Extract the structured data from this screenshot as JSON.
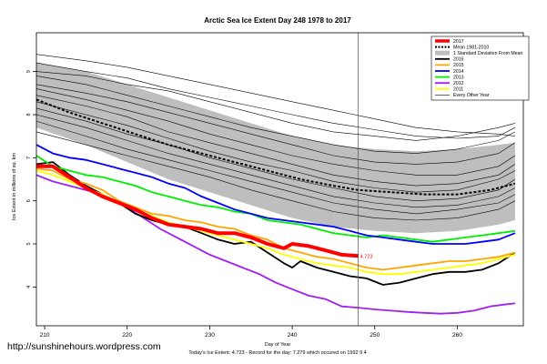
{
  "chart_data": {
    "type": "line",
    "title": "Arctic Sea Ice Extent Day 248 1978 to 2017",
    "xlabel": "Day of Year",
    "ylabel": "Ice Extent in millions of sq. km",
    "xlim": [
      209,
      268
    ],
    "ylim": [
      3.1,
      9.9
    ],
    "x_ticks": [
      210,
      220,
      230,
      240,
      250,
      260
    ],
    "y_ticks": [
      4,
      5,
      6,
      7,
      8,
      9
    ],
    "marker_day": 248,
    "today_label": "4.723",
    "footer": "Today's Ice Extent: 4.723 - Record for the day: 7.279 which occured on 1992 9 4",
    "watermark": "http://sunshinehours.wordpress.com",
    "legend": [
      {
        "name": "2017",
        "color": "#ff0000",
        "style": "solid-thick"
      },
      {
        "name": "Mean 1981-2010",
        "color": "#000000",
        "style": "dotted"
      },
      {
        "name": "1 Standard Deviation From Mean",
        "color": "#bebebe",
        "style": "box"
      },
      {
        "name": "2016",
        "color": "#000000",
        "style": "solid"
      },
      {
        "name": "2015",
        "color": "#ffa500",
        "style": "solid"
      },
      {
        "name": "2014",
        "color": "#0000ff",
        "style": "solid"
      },
      {
        "name": "2013",
        "color": "#00ee00",
        "style": "solid"
      },
      {
        "name": "2012",
        "color": "#a020f0",
        "style": "solid"
      },
      {
        "name": "2011",
        "color": "#ffff00",
        "style": "solid"
      },
      {
        "name": "Every Other Year",
        "color": "#000000",
        "style": "thin"
      }
    ],
    "band": {
      "x": [
        209,
        215,
        220,
        225,
        230,
        235,
        240,
        245,
        250,
        255,
        260,
        265,
        267
      ],
      "upper": [
        9.2,
        9.0,
        8.7,
        8.4,
        8.1,
        7.8,
        7.5,
        7.3,
        7.2,
        7.15,
        7.2,
        7.3,
        7.35
      ],
      "lower": [
        7.7,
        7.3,
        6.9,
        6.5,
        6.2,
        5.9,
        5.6,
        5.4,
        5.3,
        5.25,
        5.3,
        5.45,
        5.55
      ]
    },
    "mean": {
      "x": [
        209,
        213,
        217,
        221,
        225,
        229,
        233,
        237,
        241,
        245,
        248,
        252,
        256,
        260,
        264,
        267
      ],
      "y": [
        8.35,
        8.05,
        7.8,
        7.55,
        7.3,
        7.1,
        6.9,
        6.7,
        6.5,
        6.35,
        6.25,
        6.2,
        6.15,
        6.15,
        6.25,
        6.4
      ]
    },
    "series": [
      {
        "name": "2012",
        "color": "#a020f0",
        "width": 1.8,
        "x": [
          209,
          211,
          214,
          216,
          218,
          220,
          222,
          224,
          226,
          228,
          230,
          232,
          234,
          236,
          238,
          240,
          242,
          244,
          246,
          248,
          250,
          252,
          254,
          256,
          258,
          260,
          262,
          264,
          266,
          267
        ],
        "y": [
          6.6,
          6.45,
          6.3,
          6.2,
          6.05,
          5.85,
          5.6,
          5.35,
          5.15,
          4.95,
          4.75,
          4.6,
          4.45,
          4.3,
          4.1,
          3.95,
          3.8,
          3.72,
          3.55,
          3.52,
          3.48,
          3.45,
          3.42,
          3.4,
          3.38,
          3.4,
          3.45,
          3.55,
          3.6,
          3.62
        ]
      },
      {
        "name": "2016",
        "color": "#000000",
        "width": 1.8,
        "x": [
          209,
          211,
          213,
          215,
          217,
          219,
          221,
          223,
          225,
          227,
          229,
          231,
          233,
          235,
          237,
          239,
          240,
          241,
          243,
          245,
          247,
          249,
          251,
          253,
          255,
          257,
          259,
          261,
          263,
          265,
          267
        ],
        "y": [
          6.85,
          6.9,
          6.6,
          6.35,
          6.15,
          5.95,
          5.7,
          5.55,
          5.45,
          5.4,
          5.25,
          5.1,
          5.0,
          5.05,
          4.8,
          4.55,
          4.45,
          4.6,
          4.45,
          4.35,
          4.25,
          4.2,
          4.05,
          4.1,
          4.2,
          4.3,
          4.35,
          4.35,
          4.4,
          4.55,
          4.8
        ]
      },
      {
        "name": "2011",
        "color": "#ffff00",
        "width": 1.8,
        "x": [
          209,
          211,
          213,
          215,
          217,
          219,
          221,
          223,
          225,
          227,
          229,
          231,
          233,
          235,
          237,
          239,
          241,
          243,
          245,
          247,
          249,
          251,
          253,
          255,
          257,
          259,
          261,
          263,
          265,
          267
        ],
        "y": [
          6.7,
          6.6,
          6.45,
          6.3,
          6.15,
          5.95,
          5.8,
          5.65,
          5.5,
          5.4,
          5.3,
          5.2,
          5.1,
          5.0,
          4.9,
          4.75,
          4.65,
          4.55,
          4.5,
          4.45,
          4.35,
          4.3,
          4.3,
          4.35,
          4.4,
          4.45,
          4.5,
          4.55,
          4.65,
          4.75
        ]
      },
      {
        "name": "2015",
        "color": "#ffa500",
        "width": 1.8,
        "x": [
          209,
          211,
          213,
          215,
          217,
          219,
          221,
          223,
          225,
          227,
          229,
          231,
          233,
          235,
          237,
          239,
          241,
          243,
          245,
          247,
          249,
          251,
          253,
          255,
          257,
          259,
          261,
          263,
          265,
          267
        ],
        "y": [
          6.75,
          6.7,
          6.5,
          6.4,
          6.25,
          6.0,
          5.85,
          5.7,
          5.65,
          5.55,
          5.5,
          5.4,
          5.35,
          5.2,
          5.1,
          4.9,
          4.8,
          4.7,
          4.65,
          4.55,
          4.45,
          4.4,
          4.45,
          4.5,
          4.55,
          4.6,
          4.6,
          4.65,
          4.7,
          4.8
        ]
      },
      {
        "name": "2013",
        "color": "#00ee00",
        "width": 1.8,
        "x": [
          209,
          211,
          213,
          215,
          217,
          219,
          221,
          223,
          225,
          227,
          229,
          231,
          233,
          235,
          237,
          239,
          241,
          243,
          245,
          247,
          249,
          251,
          253,
          255,
          257,
          259,
          261,
          263,
          265,
          267
        ],
        "y": [
          7.05,
          6.8,
          6.7,
          6.6,
          6.55,
          6.45,
          6.35,
          6.2,
          6.1,
          6.0,
          5.9,
          5.85,
          5.75,
          5.7,
          5.55,
          5.5,
          5.45,
          5.35,
          5.25,
          5.2,
          5.15,
          5.2,
          5.15,
          5.1,
          5.05,
          5.1,
          5.15,
          5.2,
          5.25,
          5.3
        ]
      },
      {
        "name": "2014",
        "color": "#0000ff",
        "width": 1.8,
        "x": [
          209,
          211,
          213,
          215,
          217,
          219,
          221,
          223,
          225,
          227,
          229,
          231,
          233,
          235,
          237,
          239,
          241,
          243,
          245,
          247,
          249,
          251,
          253,
          255,
          257,
          259,
          261,
          263,
          265,
          267
        ],
        "y": [
          7.3,
          7.1,
          7.0,
          6.95,
          6.85,
          6.75,
          6.65,
          6.55,
          6.4,
          6.3,
          6.1,
          5.95,
          5.8,
          5.7,
          5.6,
          5.55,
          5.5,
          5.45,
          5.4,
          5.3,
          5.2,
          5.15,
          5.1,
          5.05,
          5.0,
          5.0,
          5.0,
          5.05,
          5.1,
          5.25
        ]
      },
      {
        "name": "2017",
        "color": "#ff0000",
        "width": 4,
        "x": [
          209,
          211,
          213,
          215,
          217,
          219,
          221,
          223,
          225,
          227,
          229,
          231,
          233,
          235,
          237,
          239,
          240,
          242,
          244,
          246,
          248
        ],
        "y": [
          6.8,
          6.8,
          6.55,
          6.3,
          6.1,
          5.95,
          5.8,
          5.6,
          5.45,
          5.4,
          5.35,
          5.25,
          5.25,
          5.15,
          5.0,
          4.9,
          5.0,
          4.95,
          4.85,
          4.75,
          4.72
        ]
      }
    ],
    "background_years": [
      [
        9.4,
        9.25,
        9.1,
        8.9,
        8.7,
        8.5,
        8.3,
        8.1,
        7.9,
        7.7,
        7.6,
        7.55,
        7.5
      ],
      [
        9.2,
        9.0,
        8.85,
        8.6,
        8.4,
        8.2,
        8.0,
        7.8,
        7.65,
        7.5,
        7.45,
        7.5,
        7.7
      ],
      [
        9.0,
        8.9,
        8.7,
        8.55,
        8.3,
        8.05,
        7.8,
        7.6,
        7.5,
        7.4,
        7.5,
        7.7,
        7.8
      ],
      [
        8.9,
        8.7,
        8.45,
        8.2,
        7.95,
        7.7,
        7.5,
        7.3,
        7.15,
        7.1,
        7.2,
        7.4,
        7.6
      ],
      [
        8.7,
        8.5,
        8.3,
        8.05,
        7.8,
        7.55,
        7.3,
        7.05,
        6.9,
        6.85,
        6.9,
        7.1,
        7.35
      ],
      [
        8.6,
        8.35,
        8.1,
        7.85,
        7.55,
        7.3,
        7.05,
        6.85,
        6.7,
        6.6,
        6.6,
        6.8,
        7.05
      ],
      [
        8.45,
        8.2,
        7.95,
        7.6,
        7.35,
        7.1,
        6.85,
        6.6,
        6.45,
        6.35,
        6.4,
        6.6,
        6.85
      ],
      [
        8.3,
        8.0,
        7.75,
        7.45,
        7.15,
        6.9,
        6.7,
        6.45,
        6.3,
        6.2,
        6.25,
        6.5,
        6.7
      ],
      [
        8.15,
        7.85,
        7.55,
        7.3,
        7.0,
        6.75,
        6.5,
        6.3,
        6.1,
        6.0,
        6.05,
        6.25,
        6.5
      ],
      [
        8.0,
        7.7,
        7.4,
        7.1,
        6.85,
        6.6,
        6.35,
        6.1,
        5.95,
        5.85,
        5.9,
        6.1,
        6.3
      ],
      [
        7.85,
        7.5,
        7.2,
        6.95,
        6.7,
        6.45,
        6.2,
        5.95,
        5.8,
        5.7,
        5.8,
        5.95,
        6.15
      ],
      [
        7.6,
        7.3,
        7.05,
        6.8,
        6.55,
        6.25,
        6.0,
        5.75,
        5.6,
        5.55,
        5.6,
        5.8,
        6.0
      ]
    ]
  }
}
